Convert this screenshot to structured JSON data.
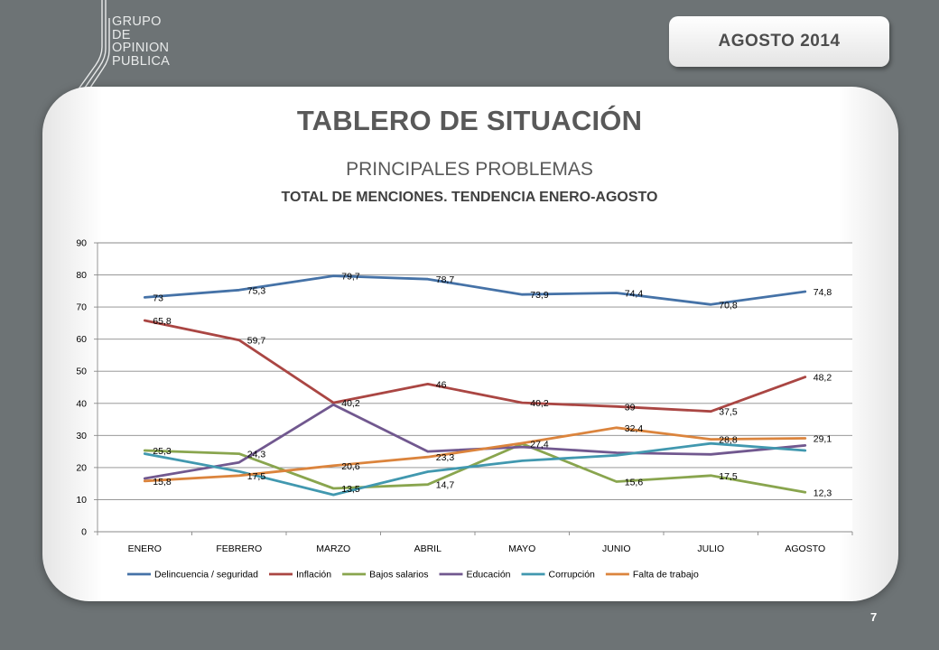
{
  "header": {
    "logo_lines": [
      "GRUPO",
      "DE",
      "OPINION",
      "PUBLICA"
    ],
    "date_badge": "AGOSTO 2014"
  },
  "slide": {
    "title": "TABLERO DE SITUACIÓN",
    "subtitle": "PRINCIPALES PROBLEMAS",
    "page_number": "7"
  },
  "colors": {
    "background": "#6d7375",
    "card": "#ffffff"
  },
  "chart_data": {
    "type": "line",
    "title": "TOTAL DE MENCIONES. TENDENCIA ENERO-AGOSTO",
    "categories": [
      "ENERO",
      "FEBRERO",
      "MARZO",
      "ABRIL",
      "MAYO",
      "JUNIO",
      "JULIO",
      "AGOSTO"
    ],
    "ylim": [
      0,
      90
    ],
    "yticks": [
      0,
      10,
      20,
      30,
      40,
      50,
      60,
      70,
      80,
      90
    ],
    "grid": true,
    "legend_position": "bottom",
    "series": [
      {
        "name": "Delincuencia / seguridad",
        "color": "#4572a7",
        "values": [
          73,
          75.3,
          79.7,
          78.7,
          73.9,
          74.4,
          70.8,
          74.8
        ],
        "labels": [
          "73",
          "75,3",
          "79,7",
          "78,7",
          "73,9",
          "74,4",
          "70,8",
          "74,8"
        ]
      },
      {
        "name": "Inflación",
        "color": "#aa4643",
        "values": [
          65.8,
          59.7,
          40.2,
          46,
          40.2,
          39,
          37.5,
          48.2
        ],
        "labels": [
          "65,8",
          "59,7",
          "40,2",
          "46",
          "40,2",
          "39",
          "37,5",
          "48,2"
        ]
      },
      {
        "name": "Bajos salarios",
        "color": "#89a54e",
        "values": [
          25.3,
          24.3,
          13.5,
          14.7,
          27.4,
          15.6,
          17.5,
          12.3
        ],
        "labels": [
          "25,3",
          "24,3",
          "13,5",
          "14,7",
          "27,4",
          "15,6",
          "17,5",
          "12,3"
        ]
      },
      {
        "name": "Educación",
        "color": "#71588f",
        "values": [
          16.6,
          21.6,
          39.6,
          25,
          26.4,
          24.6,
          24.1,
          26.9
        ]
      },
      {
        "name": "Corrupción",
        "color": "#4198af",
        "values": [
          24.3,
          18.8,
          11.5,
          18.7,
          22.1,
          23.8,
          27.5,
          25.3
        ]
      },
      {
        "name": "Falta de trabajo",
        "color": "#db843d",
        "values": [
          15.8,
          17.5,
          20.6,
          23.3,
          27.6,
          32.4,
          28.8,
          29.1
        ],
        "labels": [
          "15,8",
          "17,5",
          "20,6",
          "23,3",
          "",
          "32,4",
          "28,8",
          "29,1"
        ]
      }
    ]
  }
}
